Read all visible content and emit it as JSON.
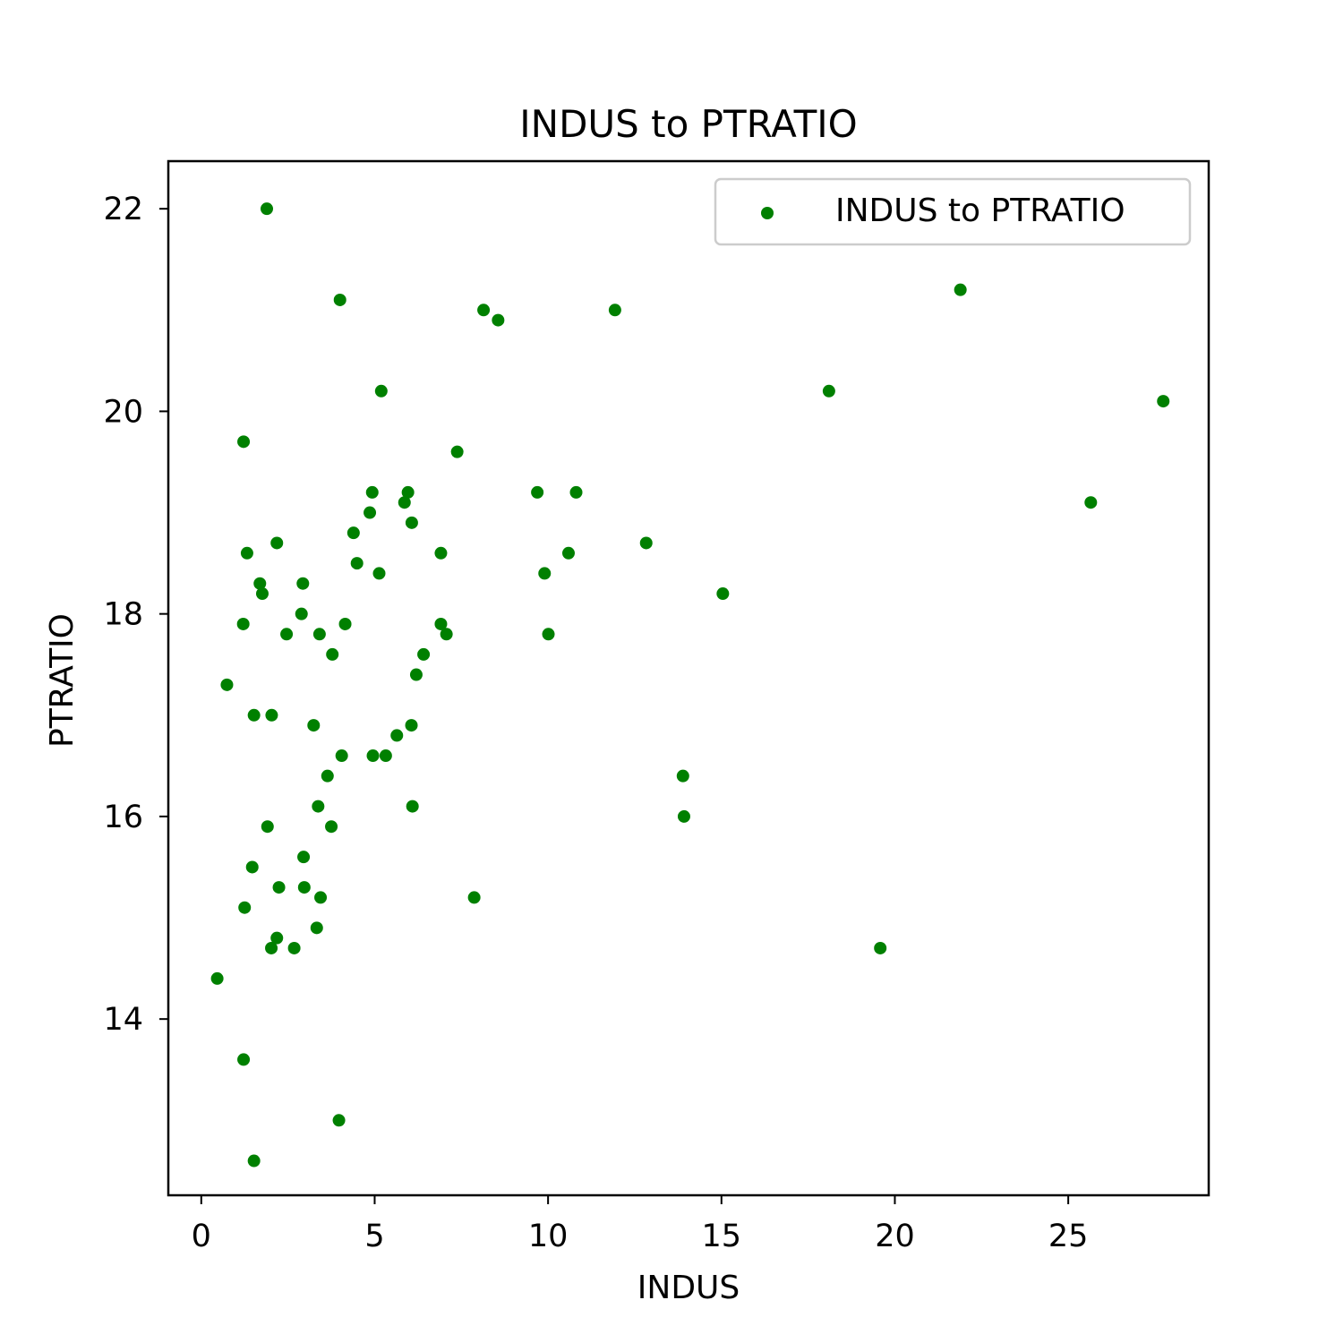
{
  "chart_data": {
    "type": "scatter",
    "title": "INDUS to PTRATIO",
    "xlabel": "INDUS",
    "ylabel": "PTRATIO",
    "xlim": [
      -0.95,
      29.05
    ],
    "ylim": [
      12.26,
      22.47
    ],
    "xticks": [
      0,
      5,
      10,
      15,
      20,
      25
    ],
    "yticks": [
      14,
      16,
      18,
      20,
      22
    ],
    "grid": false,
    "legend": {
      "position": "upper right",
      "entries": [
        "INDUS to PTRATIO"
      ]
    },
    "series": [
      {
        "name": "INDUS to PTRATIO",
        "color": "#008000",
        "x": [
          1.89,
          4.0,
          8.14,
          8.56,
          11.93,
          21.89,
          18.1,
          27.74,
          5.19,
          1.22,
          7.38,
          9.69,
          10.81,
          4.93,
          5.96,
          5.86,
          6.07,
          4.86,
          25.65,
          6.91,
          10.59,
          12.83,
          4.39,
          4.49,
          9.9,
          2.18,
          2.93,
          1.32,
          1.69,
          1.76,
          15.04,
          2.89,
          4.15,
          1.21,
          6.91,
          3.41,
          2.46,
          7.07,
          10.01,
          6.41,
          3.78,
          6.2,
          0.74,
          1.52,
          2.03,
          3.24,
          6.06,
          5.64,
          4.05,
          4.95,
          5.32,
          13.89,
          3.64,
          13.92,
          3.37,
          6.09,
          1.91,
          3.75,
          2.95,
          1.47,
          2.24,
          2.97,
          3.44,
          7.87,
          1.25,
          3.33,
          2.18,
          2.02,
          2.68,
          19.58,
          0.46,
          1.22,
          3.97,
          1.52,
          5.13
        ],
        "y": [
          22.0,
          21.1,
          21.0,
          20.9,
          21.0,
          21.2,
          20.2,
          20.1,
          20.2,
          19.7,
          19.6,
          19.2,
          19.2,
          19.2,
          19.2,
          19.1,
          18.9,
          19.0,
          19.1,
          18.6,
          18.6,
          18.7,
          18.8,
          18.5,
          18.4,
          18.7,
          18.3,
          18.6,
          18.3,
          18.2,
          18.2,
          18.0,
          17.9,
          17.9,
          17.9,
          17.8,
          17.8,
          17.8,
          17.8,
          17.6,
          17.6,
          17.4,
          17.3,
          17.0,
          17.0,
          16.9,
          16.9,
          16.8,
          16.6,
          16.6,
          16.6,
          16.4,
          16.4,
          16.0,
          16.1,
          16.1,
          15.9,
          15.9,
          15.6,
          15.5,
          15.3,
          15.3,
          15.2,
          15.2,
          15.1,
          14.9,
          14.8,
          14.7,
          14.7,
          14.7,
          14.4,
          13.6,
          13.0,
          12.6,
          18.4
        ]
      }
    ]
  }
}
